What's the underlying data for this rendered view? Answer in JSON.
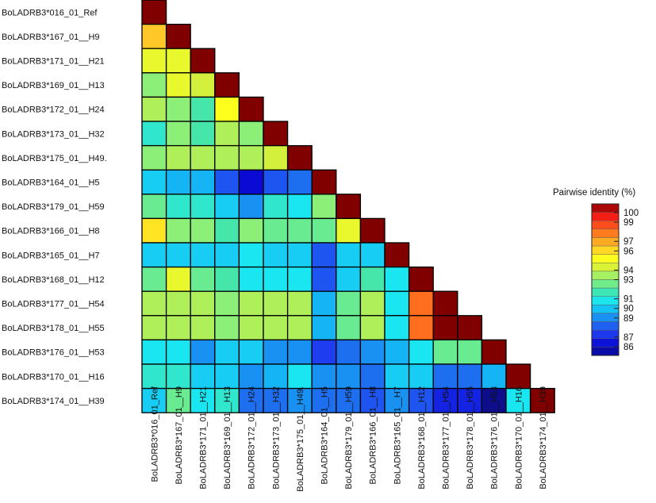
{
  "chart_data": {
    "type": "heatmap",
    "layout": "lower-triangle",
    "labels": [
      "BoLADRB3*016_01_Ref",
      "BoLADRB3*167_01__H9",
      "BoLADRB3*171_01__H21",
      "BoLADRB3*169_01__H13",
      "BoLADRB3*172_01__H24",
      "BoLADRB3*173_01__H32",
      "BoLADRB3*175_01__H49",
      "BoLADRB3*164_01__H5",
      "BoLADRB3*179_01__H59",
      "BoLADRB3*166_01__H8",
      "BoLADRB3*165_01__H7",
      "BoLADRB3*168_01__H12",
      "BoLADRB3*177_01__H54",
      "BoLADRB3*178_01__H55",
      "BoLADRB3*176_01__H53",
      "BoLADRB3*170_01__H16",
      "BoLADRB3*174_01__H39"
    ],
    "row_labels": [
      "BoLADRB3*016_01_Ref",
      "BoLADRB3*167_01__H9",
      "BoLADRB3*171_01__H21",
      "BoLADRB3*169_01__H13",
      "BoLADRB3*172_01__H24",
      "BoLADRB3*173_01__H32",
      "BoLADRB3*175_01__H49.",
      "BoLADRB3*164_01__H5",
      "BoLADRB3*179_01__H59",
      "BoLADRB3*166_01__H8",
      "BoLADRB3*165_01__H7",
      "BoLADRB3*168_01__H12",
      "BoLADRB3*177_01__H54",
      "BoLADRB3*178_01__H55",
      "BoLADRB3*176_01__H53",
      "BoLADRB3*170_01__H16",
      "BoLADRB3*174_01__H39"
    ],
    "col_labels": [
      "BoLADRB3*016_01_Ref",
      "BoLADRB3*167_01__H9",
      "BoLADRB3*171_01__H21",
      "BoLADRB3*169_01__H13",
      "BoLADRB3*172_01__H24",
      "BoLADRB3*173_01__H32",
      "BoLADRB3*175_01__H49.",
      "BoLADRB3*164_01__H5",
      "BoLADRB3*179_01__H59",
      "BoLADRB3*166_01__H8",
      "BoLADRB3*165_01__H7",
      "BoLADRB3*168_01__H12",
      "BoLADRB3*177_01__H54",
      "BoLADRB3*178_01__H55",
      "BoLADRB3*176_01__H53",
      "BoLADRB3*170_01__H16",
      "BoLADRB3*174_01__H39"
    ],
    "values": [
      [
        100
      ],
      [
        96,
        100
      ],
      [
        94.5,
        94.5,
        100
      ],
      [
        93,
        94.5,
        94,
        100
      ],
      [
        93.5,
        93,
        92,
        95,
        100
      ],
      [
        91.5,
        93,
        92,
        93.5,
        93,
        100
      ],
      [
        93,
        93.5,
        93.5,
        93.5,
        93.5,
        94,
        100
      ],
      [
        90.5,
        90,
        90,
        88.5,
        87,
        88.5,
        89,
        100
      ],
      [
        92.5,
        91.5,
        91.5,
        90.5,
        89.5,
        91.5,
        91,
        93,
        100
      ],
      [
        95.5,
        93,
        93,
        92,
        93,
        92.5,
        92.5,
        92.5,
        94.5,
        100
      ],
      [
        90.5,
        90.5,
        90.5,
        90.5,
        91,
        90.5,
        90.5,
        88.5,
        90.5,
        90.5,
        100
      ],
      [
        92.5,
        94.5,
        92.5,
        92,
        91,
        91,
        91,
        88.5,
        90.5,
        92,
        91,
        100
      ],
      [
        93.5,
        93.5,
        93.5,
        93,
        93.5,
        93.5,
        93.5,
        90,
        92.5,
        93.5,
        91,
        97.5,
        100
      ],
      [
        93.5,
        93.5,
        93.5,
        93,
        93.5,
        93.5,
        93.5,
        90,
        92.5,
        93.5,
        91,
        97.5,
        100,
        100
      ],
      [
        91,
        91,
        89.5,
        90.5,
        90.5,
        89.5,
        89.5,
        88,
        89,
        89.5,
        90,
        91,
        92.5,
        92.5,
        100
      ],
      [
        91.5,
        91.5,
        90.5,
        90.5,
        89.5,
        90,
        91,
        89.5,
        89.5,
        89,
        90.5,
        90.5,
        89,
        89,
        90,
        100
      ],
      [
        90.5,
        92.5,
        91,
        91.5,
        89,
        89,
        89.5,
        89,
        89,
        88.5,
        89.5,
        88.5,
        87.5,
        87.5,
        86,
        91,
        100
      ]
    ],
    "legend": {
      "title": "Pairwise identity (%)",
      "ticks": [
        100,
        99,
        97,
        96,
        94,
        93,
        91,
        90,
        89,
        87,
        86
      ],
      "range": [
        86,
        100
      ],
      "placement": "right"
    },
    "colorscale": [
      [
        86,
        "#0d0d8c"
      ],
      [
        87,
        "#0a0ad4"
      ],
      [
        88,
        "#1e3cf0"
      ],
      [
        89,
        "#1e6ef0"
      ],
      [
        90,
        "#14b4f5"
      ],
      [
        91,
        "#19e6f0"
      ],
      [
        92,
        "#46e6aa"
      ],
      [
        93,
        "#8cf078"
      ],
      [
        94,
        "#d2f03c"
      ],
      [
        95,
        "#ffff1e"
      ],
      [
        96,
        "#ffc828"
      ],
      [
        97,
        "#ff8c1e"
      ],
      [
        98,
        "#ff501e"
      ],
      [
        99,
        "#f01414"
      ],
      [
        100,
        "#800000"
      ]
    ]
  }
}
